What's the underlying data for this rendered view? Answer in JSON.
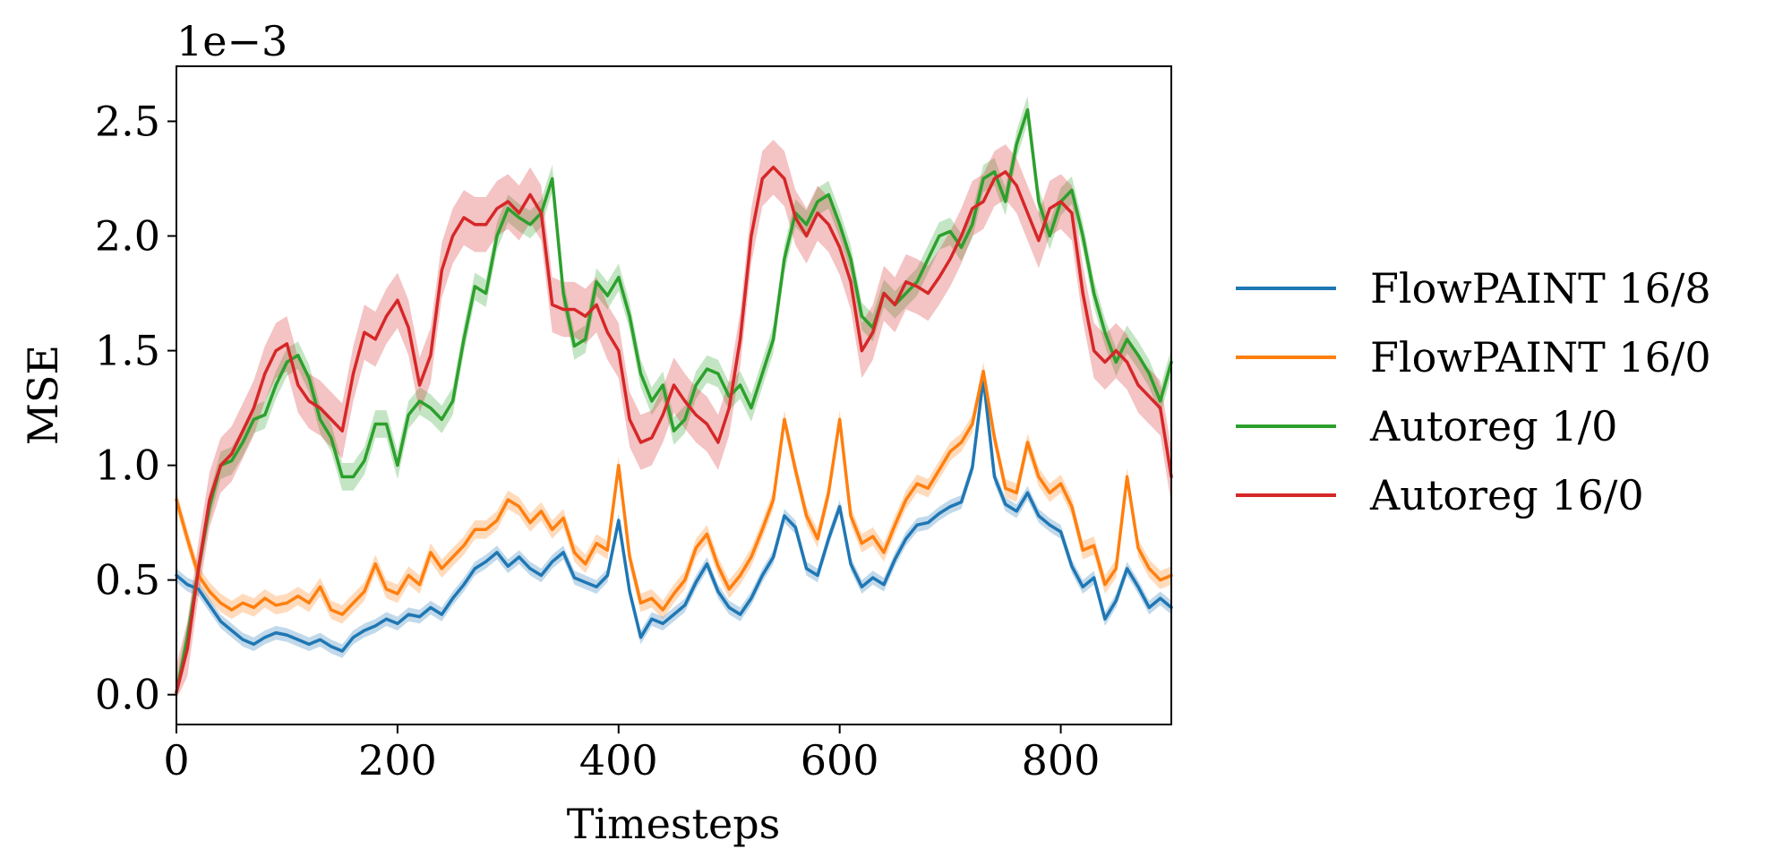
{
  "chart_data": {
    "type": "line",
    "title": "",
    "xlabel": "Timesteps",
    "ylabel": "MSE",
    "y_scale_label": "1e−3",
    "xlim": [
      0,
      900
    ],
    "ylim": [
      -0.00013,
      0.00274
    ],
    "xticks": [
      0,
      200,
      400,
      600,
      800
    ],
    "xtick_labels": [
      "0",
      "200",
      "400",
      "600",
      "800"
    ],
    "yticks": [
      0,
      0.0005,
      0.001,
      0.0015,
      0.002,
      0.0025
    ],
    "ytick_labels": [
      "0.0",
      "0.5",
      "1.0",
      "1.5",
      "2.0",
      "2.5"
    ],
    "grid": false,
    "legend_position": "right-outside",
    "series": [
      {
        "name": "FlowPAINT 16/8",
        "color": "#1f77b4",
        "x": [
          0,
          10,
          20,
          30,
          40,
          50,
          60,
          70,
          80,
          90,
          100,
          110,
          120,
          130,
          140,
          150,
          160,
          170,
          180,
          190,
          200,
          210,
          220,
          230,
          240,
          250,
          260,
          270,
          280,
          290,
          300,
          310,
          320,
          330,
          340,
          350,
          360,
          370,
          380,
          390,
          400,
          410,
          420,
          430,
          440,
          450,
          460,
          470,
          480,
          490,
          500,
          510,
          520,
          530,
          540,
          550,
          560,
          570,
          580,
          590,
          600,
          610,
          620,
          630,
          640,
          650,
          660,
          670,
          680,
          690,
          700,
          710,
          720,
          730,
          740,
          750,
          760,
          770,
          780,
          790,
          800,
          810,
          820,
          830,
          840,
          850,
          860,
          870,
          880,
          890,
          900
        ],
        "y": [
          0.00052,
          0.00048,
          0.00046,
          0.00039,
          0.00032,
          0.00028,
          0.00024,
          0.00022,
          0.00025,
          0.00027,
          0.00026,
          0.00024,
          0.00022,
          0.00024,
          0.00021,
          0.00019,
          0.00025,
          0.00028,
          0.0003,
          0.00033,
          0.00031,
          0.00035,
          0.00034,
          0.00038,
          0.00035,
          0.00042,
          0.00048,
          0.00055,
          0.00058,
          0.00062,
          0.00056,
          0.0006,
          0.00055,
          0.00052,
          0.00058,
          0.00062,
          0.00051,
          0.00049,
          0.00047,
          0.00052,
          0.00076,
          0.00045,
          0.00025,
          0.00033,
          0.00031,
          0.00035,
          0.00039,
          0.00049,
          0.00057,
          0.00045,
          0.00038,
          0.00035,
          0.00042,
          0.00052,
          0.0006,
          0.00078,
          0.00073,
          0.00055,
          0.00052,
          0.00068,
          0.00082,
          0.00057,
          0.00047,
          0.00051,
          0.00048,
          0.00059,
          0.00068,
          0.00074,
          0.00075,
          0.00079,
          0.00082,
          0.00084,
          0.00099,
          0.00138,
          0.00095,
          0.00083,
          0.0008,
          0.00088,
          0.00078,
          0.00074,
          0.00071,
          0.00056,
          0.00047,
          0.00051,
          0.00033,
          0.00041,
          0.00055,
          0.00047,
          0.00038,
          0.00042,
          0.00038
        ],
        "band": 3e-05
      },
      {
        "name": "FlowPAINT 16/0",
        "color": "#ff7f0e",
        "x": [
          0,
          10,
          20,
          30,
          40,
          50,
          60,
          70,
          80,
          90,
          100,
          110,
          120,
          130,
          140,
          150,
          160,
          170,
          180,
          190,
          200,
          210,
          220,
          230,
          240,
          250,
          260,
          270,
          280,
          290,
          300,
          310,
          320,
          330,
          340,
          350,
          360,
          370,
          380,
          390,
          400,
          410,
          420,
          430,
          440,
          450,
          460,
          470,
          480,
          490,
          500,
          510,
          520,
          530,
          540,
          550,
          560,
          570,
          580,
          590,
          600,
          610,
          620,
          630,
          640,
          650,
          660,
          670,
          680,
          690,
          700,
          710,
          720,
          730,
          740,
          750,
          760,
          770,
          780,
          790,
          800,
          810,
          820,
          830,
          840,
          850,
          860,
          870,
          880,
          890,
          900
        ],
        "y": [
          0.00085,
          0.00068,
          0.00052,
          0.00045,
          0.0004,
          0.00037,
          0.0004,
          0.00038,
          0.00042,
          0.00039,
          0.0004,
          0.00043,
          0.0004,
          0.00047,
          0.00037,
          0.00035,
          0.0004,
          0.00045,
          0.00057,
          0.00046,
          0.00044,
          0.00052,
          0.00048,
          0.00062,
          0.00055,
          0.0006,
          0.00065,
          0.00072,
          0.00072,
          0.00076,
          0.00085,
          0.00082,
          0.00075,
          0.0008,
          0.00072,
          0.00077,
          0.00062,
          0.00057,
          0.00066,
          0.00063,
          0.001,
          0.0006,
          0.0004,
          0.00042,
          0.00037,
          0.00044,
          0.0005,
          0.00064,
          0.0007,
          0.00056,
          0.00046,
          0.00052,
          0.0006,
          0.00072,
          0.00085,
          0.0012,
          0.00098,
          0.00078,
          0.00068,
          0.00088,
          0.0012,
          0.00078,
          0.00066,
          0.00069,
          0.00062,
          0.00074,
          0.00085,
          0.00092,
          0.0009,
          0.00098,
          0.00106,
          0.0011,
          0.00118,
          0.00141,
          0.00112,
          0.0009,
          0.00088,
          0.0011,
          0.00095,
          0.00088,
          0.00092,
          0.00082,
          0.00063,
          0.00065,
          0.00048,
          0.00055,
          0.00095,
          0.00064,
          0.00055,
          0.0005,
          0.00052
        ],
        "band": 4e-05
      },
      {
        "name": "Autoreg 1/0",
        "color": "#2ca02c",
        "x": [
          0,
          10,
          20,
          30,
          40,
          50,
          60,
          70,
          80,
          90,
          100,
          110,
          120,
          130,
          140,
          150,
          160,
          170,
          180,
          190,
          200,
          210,
          220,
          230,
          240,
          250,
          260,
          270,
          280,
          290,
          300,
          310,
          320,
          330,
          340,
          350,
          360,
          370,
          380,
          390,
          400,
          410,
          420,
          430,
          440,
          450,
          460,
          470,
          480,
          490,
          500,
          510,
          520,
          530,
          540,
          550,
          560,
          570,
          580,
          590,
          600,
          610,
          620,
          630,
          640,
          650,
          660,
          670,
          680,
          690,
          700,
          710,
          720,
          730,
          740,
          750,
          760,
          770,
          780,
          790,
          800,
          810,
          820,
          830,
          840,
          850,
          860,
          870,
          880,
          890,
          900
        ],
        "y": [
          1e-05,
          0.00025,
          0.00055,
          0.00082,
          0.001,
          0.00102,
          0.0011,
          0.0012,
          0.00122,
          0.00135,
          0.00145,
          0.00148,
          0.00138,
          0.0012,
          0.00112,
          0.00095,
          0.00095,
          0.00102,
          0.00118,
          0.00118,
          0.001,
          0.00122,
          0.00128,
          0.00125,
          0.0012,
          0.00128,
          0.00155,
          0.00178,
          0.00175,
          0.002,
          0.00212,
          0.00208,
          0.00205,
          0.0021,
          0.00225,
          0.00175,
          0.00152,
          0.00155,
          0.0018,
          0.00174,
          0.00182,
          0.00165,
          0.0014,
          0.00128,
          0.00135,
          0.00115,
          0.0012,
          0.00135,
          0.00142,
          0.0014,
          0.0013,
          0.00135,
          0.00125,
          0.0014,
          0.00155,
          0.0019,
          0.0021,
          0.00205,
          0.00215,
          0.00218,
          0.00205,
          0.0019,
          0.00165,
          0.0016,
          0.00175,
          0.0017,
          0.00175,
          0.0018,
          0.0019,
          0.002,
          0.00202,
          0.00195,
          0.00205,
          0.00225,
          0.00228,
          0.00215,
          0.0024,
          0.00255,
          0.00215,
          0.002,
          0.00215,
          0.0022,
          0.002,
          0.00175,
          0.00158,
          0.00145,
          0.00155,
          0.00148,
          0.0014,
          0.00128,
          0.00145
        ],
        "band": 6e-05
      },
      {
        "name": "Autoreg 16/0",
        "color": "#d62728",
        "x": [
          0,
          10,
          20,
          30,
          40,
          50,
          60,
          70,
          80,
          90,
          100,
          110,
          120,
          130,
          140,
          150,
          160,
          170,
          180,
          190,
          200,
          210,
          220,
          230,
          240,
          250,
          260,
          270,
          280,
          290,
          300,
          310,
          320,
          330,
          340,
          350,
          360,
          370,
          380,
          390,
          400,
          410,
          420,
          430,
          440,
          450,
          460,
          470,
          480,
          490,
          500,
          510,
          520,
          530,
          540,
          550,
          560,
          570,
          580,
          590,
          600,
          610,
          620,
          630,
          640,
          650,
          660,
          670,
          680,
          690,
          700,
          710,
          720,
          730,
          740,
          750,
          760,
          770,
          780,
          790,
          800,
          810,
          820,
          830,
          840,
          850,
          860,
          870,
          880,
          890,
          900
        ],
        "y": [
          1e-05,
          0.0002,
          0.00055,
          0.00085,
          0.001,
          0.00105,
          0.00115,
          0.00125,
          0.0014,
          0.0015,
          0.00153,
          0.00135,
          0.00128,
          0.00125,
          0.0012,
          0.00115,
          0.0014,
          0.00158,
          0.00155,
          0.00165,
          0.00172,
          0.0016,
          0.00135,
          0.00148,
          0.00185,
          0.002,
          0.00208,
          0.00205,
          0.00205,
          0.00212,
          0.00215,
          0.0021,
          0.00218,
          0.0021,
          0.0017,
          0.00168,
          0.00168,
          0.00165,
          0.0017,
          0.00158,
          0.0015,
          0.0012,
          0.0011,
          0.00112,
          0.00122,
          0.00135,
          0.00128,
          0.00122,
          0.00118,
          0.0011,
          0.00125,
          0.00155,
          0.002,
          0.00225,
          0.0023,
          0.00225,
          0.00208,
          0.002,
          0.0021,
          0.00205,
          0.00195,
          0.0018,
          0.0015,
          0.00158,
          0.00175,
          0.0017,
          0.0018,
          0.00178,
          0.00175,
          0.00182,
          0.0019,
          0.002,
          0.00212,
          0.00215,
          0.00225,
          0.00228,
          0.00222,
          0.0021,
          0.00198,
          0.00212,
          0.00215,
          0.0021,
          0.00175,
          0.0015,
          0.00145,
          0.0015,
          0.00145,
          0.00135,
          0.0013,
          0.00125,
          0.00095
        ],
        "band": 0.00012
      }
    ]
  }
}
